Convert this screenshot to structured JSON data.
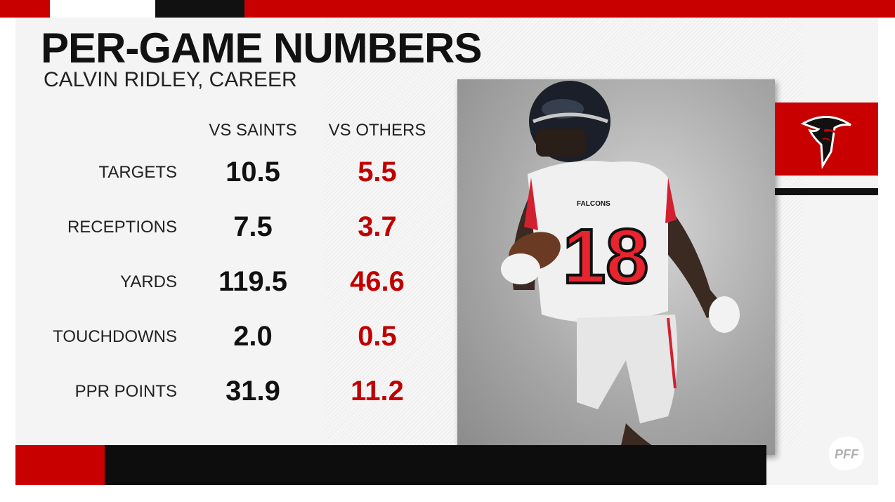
{
  "title": "PER-GAME NUMBERS",
  "subtitle": "CALVIN RIDLEY, CAREER",
  "columns": [
    "VS SAINTS",
    "VS OTHERS"
  ],
  "rows": [
    {
      "label": "TARGETS",
      "vs_saints": "10.5",
      "vs_others": "5.5"
    },
    {
      "label": "RECEPTIONS",
      "vs_saints": "7.5",
      "vs_others": "3.7"
    },
    {
      "label": "YARDS",
      "vs_saints": "119.5",
      "vs_others": "46.6"
    },
    {
      "label": "TOUCHDOWNS",
      "vs_saints": "2.0",
      "vs_others": "0.5"
    },
    {
      "label": "PPR POINTS",
      "vs_saints": "31.9",
      "vs_others": "11.2"
    }
  ],
  "player_photo": {
    "jersey_number": "18",
    "jersey_team": "FALCONS"
  },
  "team_logo_icon": "falcons-logo-icon",
  "brand_logo": "PFF",
  "colors": {
    "accent_red": "#c80000",
    "value_red": "#c00000",
    "black": "#0d0d0d",
    "background": "#f4f4f4"
  }
}
